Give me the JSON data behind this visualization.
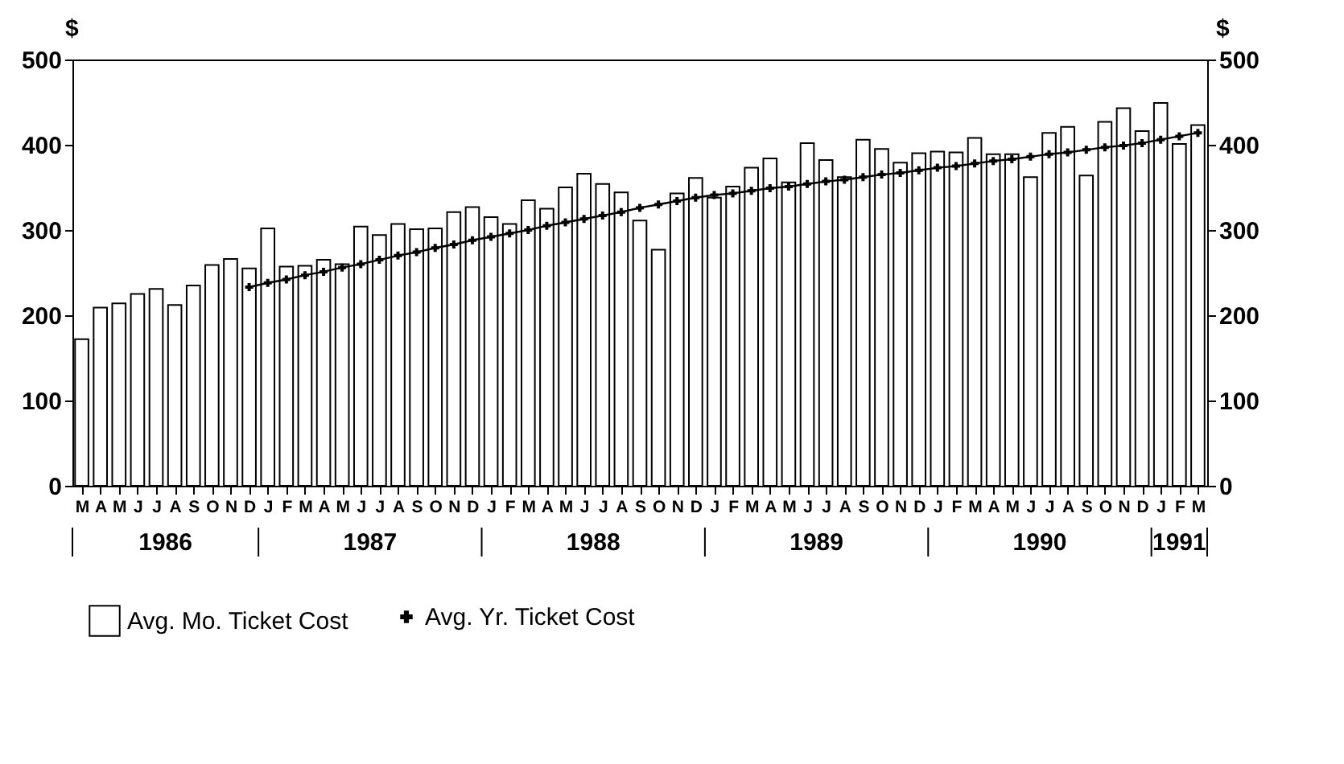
{
  "chart_data": {
    "type": "bar",
    "categories": [
      "M",
      "A",
      "M",
      "J",
      "J",
      "A",
      "S",
      "O",
      "N",
      "D",
      "J",
      "F",
      "M",
      "A",
      "M",
      "J",
      "J",
      "A",
      "S",
      "O",
      "N",
      "D",
      "J",
      "F",
      "M",
      "A",
      "M",
      "J",
      "J",
      "A",
      "S",
      "O",
      "N",
      "D",
      "J",
      "F",
      "M",
      "A",
      "M",
      "J",
      "J",
      "A",
      "S",
      "O",
      "N",
      "D",
      "J",
      "F",
      "M",
      "A",
      "M",
      "J",
      "J",
      "A",
      "S",
      "O",
      "N",
      "D",
      "J",
      "F",
      "M"
    ],
    "annotations": [
      "1986",
      "1987",
      "1988",
      "1989",
      "1990",
      "1991"
    ],
    "ylabel": "$",
    "y2label": "$",
    "ylim": [
      0,
      500
    ],
    "yticks": [
      0,
      100,
      200,
      300,
      400,
      500
    ],
    "y2lim": [
      0,
      500
    ],
    "y2ticks": [
      0,
      100,
      200,
      300,
      400,
      500
    ],
    "legend": "bottom",
    "marker": "cross",
    "series": [
      {
        "name": "Avg. Mo. Ticket Cost",
        "color": "#ffffff",
        "values": [
          172,
          209,
          214,
          225,
          231,
          212,
          235,
          259,
          266,
          255,
          302,
          257,
          258,
          265,
          260,
          304,
          294,
          307,
          301,
          302,
          321,
          327,
          315,
          307,
          335,
          325,
          350,
          366,
          354,
          344,
          311,
          277,
          343,
          361,
          338,
          351,
          373,
          384,
          356,
          402,
          382,
          362,
          406,
          395,
          379,
          390,
          392,
          391,
          408,
          389,
          389,
          362,
          414,
          421,
          364,
          427,
          443,
          416,
          449,
          401,
          423
        ]
      },
      {
        "name": "Avg. Yr. Ticket Cost",
        "type": "line",
        "color": "#000000",
        "values": [
          null,
          null,
          null,
          null,
          null,
          null,
          null,
          null,
          null,
          233,
          238,
          242,
          247,
          251,
          256,
          260,
          265,
          270,
          274,
          279,
          283,
          288,
          292,
          296,
          300,
          305,
          309,
          313,
          317,
          321,
          326,
          330,
          334,
          338,
          341,
          343,
          346,
          349,
          351,
          354,
          357,
          359,
          362,
          365,
          367,
          370,
          373,
          375,
          378,
          381,
          383,
          386,
          389,
          391,
          394,
          397,
          399,
          402,
          406,
          410,
          414
        ]
      }
    ]
  }
}
